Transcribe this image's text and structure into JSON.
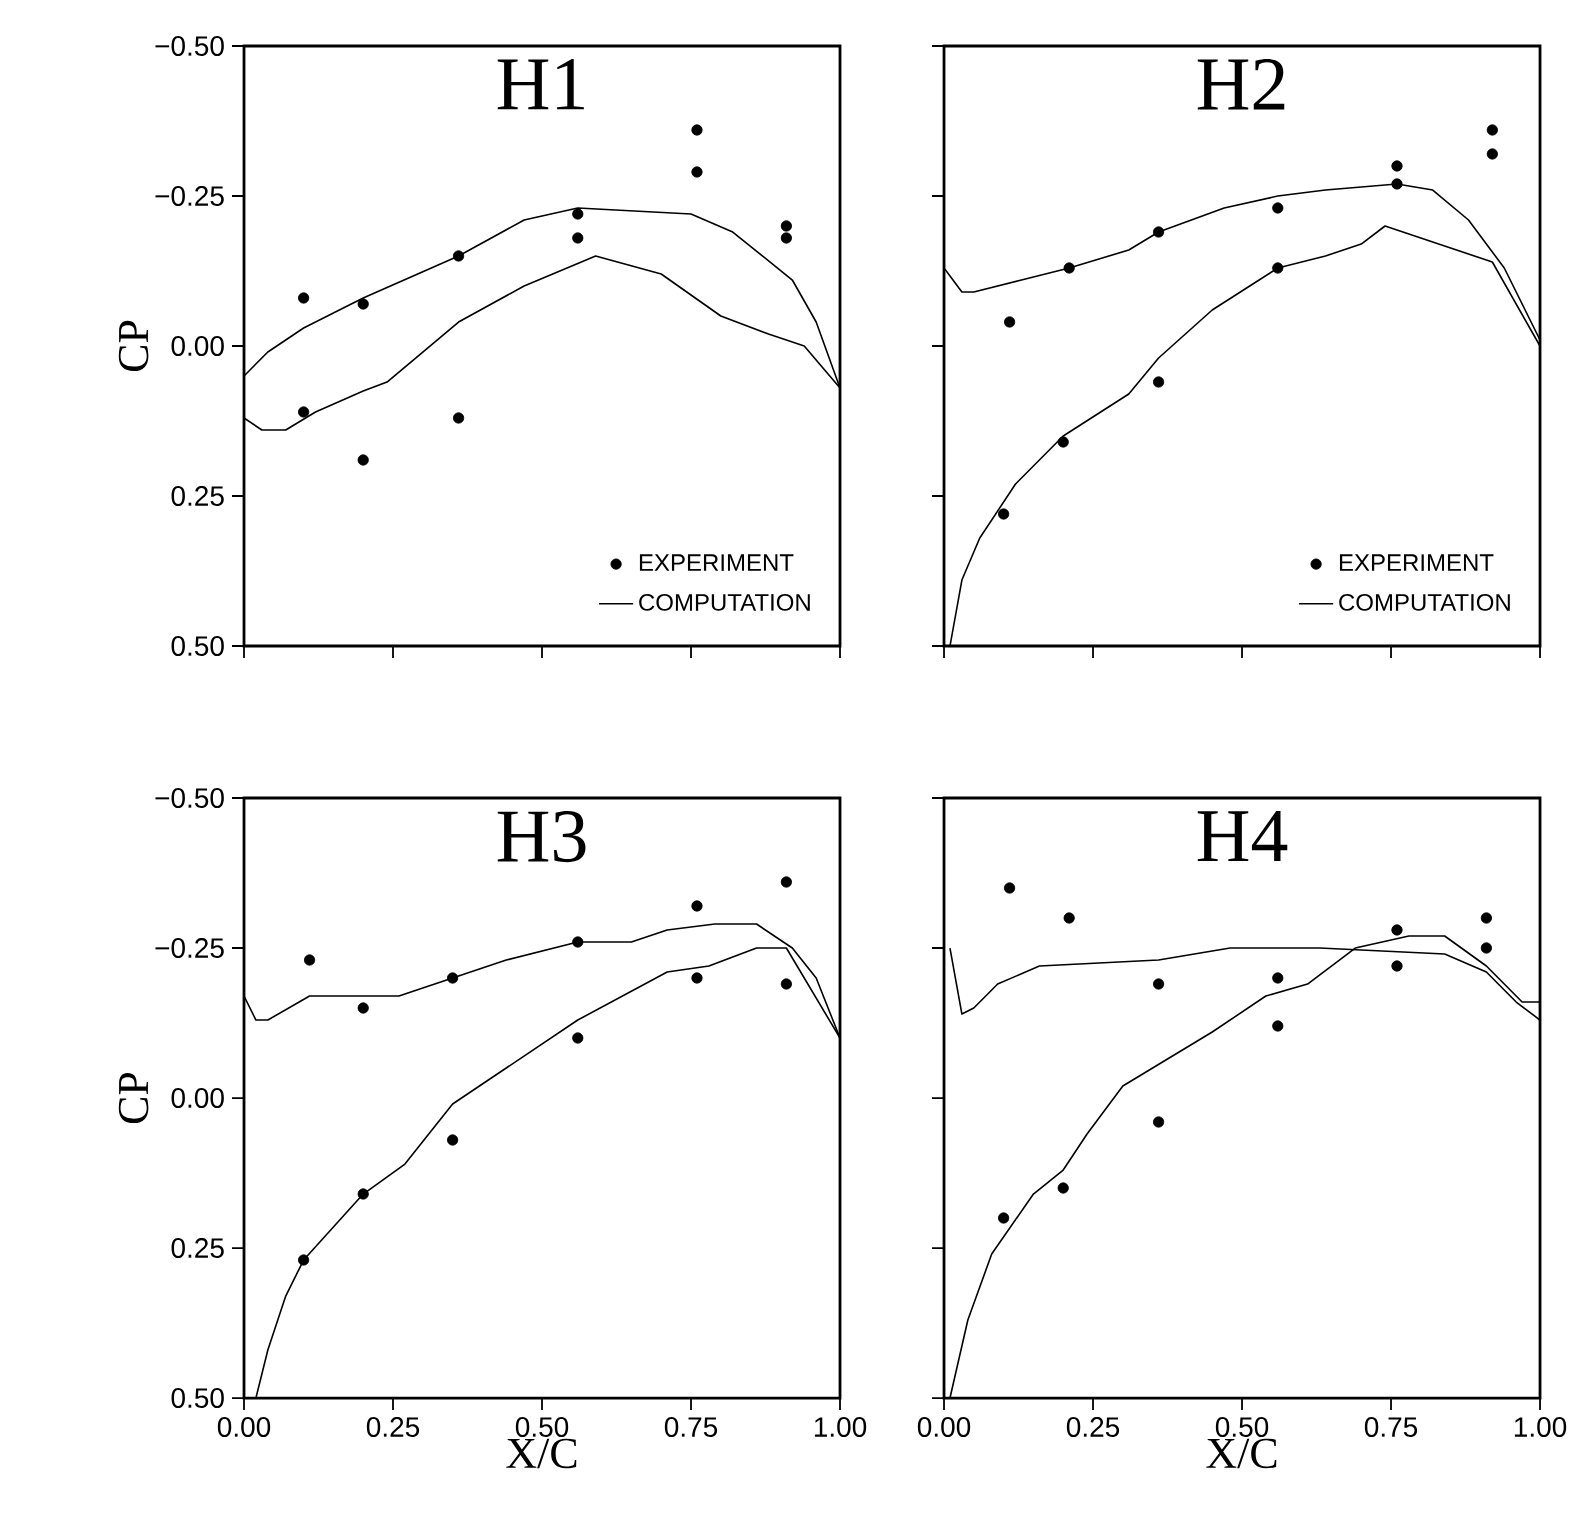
{
  "chart_data": [
    {
      "type": "line",
      "title": "H1",
      "ylabel": "CP",
      "xlim": [
        0,
        1
      ],
      "ylim": [
        0.5,
        -0.5
      ],
      "tick_labels": "y",
      "legend": "bottom right",
      "xticks": [
        {
          "value": 0,
          "label": null
        },
        {
          "value": 0.25,
          "label": null
        },
        {
          "value": 0.5,
          "label": null
        },
        {
          "value": 0.75,
          "label": null
        },
        {
          "value": 1,
          "label": null
        }
      ],
      "yticks": [
        {
          "value": -0.5,
          "label": "−0.50"
        },
        {
          "value": -0.25,
          "label": "−0.25"
        },
        {
          "value": 0,
          "label": "0.00"
        },
        {
          "value": 0.25,
          "label": "0.25"
        },
        {
          "value": 0.5,
          "label": "0.50"
        }
      ],
      "series": [
        {
          "name": "EXPERIMENT",
          "type": "scatter",
          "marker": "circle",
          "color": "#000000",
          "x": [
            0.1,
            0.1,
            0.2,
            0.2,
            0.36,
            0.36,
            0.56,
            0.56,
            0.76,
            0.76,
            0.91,
            0.91
          ],
          "values": [
            -0.08,
            0.11,
            -0.07,
            0.19,
            -0.15,
            0.12,
            -0.22,
            -0.18,
            -0.36,
            -0.29,
            -0.2,
            -0.18
          ]
        },
        {
          "name": "COMPUTATION",
          "color": "#000000",
          "x": [
            0,
            0.04,
            0.1,
            0.2,
            0.36,
            0.47,
            0.56,
            0.75,
            0.82,
            0.92,
            0.96,
            1.0
          ],
          "values": [
            0.05,
            0.01,
            -0.03,
            -0.08,
            -0.15,
            -0.21,
            -0.23,
            -0.22,
            -0.19,
            -0.11,
            -0.04,
            0.07
          ]
        },
        {
          "color": "#000000",
          "x": [
            0,
            0.03,
            0.07,
            0.12,
            0.2,
            0.24,
            0.36,
            0.47,
            0.59,
            0.7,
            0.8,
            0.88,
            0.94,
            1.0
          ],
          "values": [
            0.12,
            0.14,
            0.14,
            0.11,
            0.075,
            0.06,
            -0.04,
            -0.1,
            -0.15,
            -0.12,
            -0.05,
            -0.02,
            0.0,
            0.07
          ]
        }
      ]
    },
    {
      "type": "line",
      "title": "H2",
      "xlim": [
        0,
        1
      ],
      "ylim": [
        0.5,
        -0.5
      ],
      "tick_labels": false,
      "legend": "bottom right",
      "xticks": [
        {
          "value": 0,
          "label": null
        },
        {
          "value": 0.25,
          "label": null
        },
        {
          "value": 0.5,
          "label": null
        },
        {
          "value": 0.75,
          "label": null
        },
        {
          "value": 1,
          "label": null
        }
      ],
      "yticks": [
        {
          "value": -0.5,
          "label": null
        },
        {
          "value": -0.25,
          "label": null
        },
        {
          "value": 0,
          "label": null
        },
        {
          "value": 0.25,
          "label": null
        },
        {
          "value": 0.5,
          "label": null
        }
      ],
      "series": [
        {
          "name": "EXPERIMENT",
          "type": "scatter",
          "marker": "circle",
          "color": "#000000",
          "x": [
            0.11,
            0.1,
            0.21,
            0.2,
            0.36,
            0.36,
            0.56,
            0.56,
            0.76,
            0.76,
            0.92,
            0.92
          ],
          "values": [
            -0.04,
            0.28,
            -0.13,
            0.16,
            -0.19,
            0.06,
            -0.23,
            -0.13,
            -0.3,
            -0.27,
            -0.36,
            -0.32
          ]
        },
        {
          "name": "COMPUTATION",
          "color": "#000000",
          "x": [
            0,
            0.03,
            0.05,
            0.13,
            0.21,
            0.31,
            0.36,
            0.47,
            0.56,
            0.64,
            0.76,
            0.82,
            0.88,
            0.94,
            1.0
          ],
          "values": [
            -0.13,
            -0.09,
            -0.09,
            -0.11,
            -0.13,
            -0.16,
            -0.19,
            -0.23,
            -0.25,
            -0.26,
            -0.27,
            -0.26,
            -0.21,
            -0.13,
            -0.01
          ]
        },
        {
          "color": "#000000",
          "x": [
            0.01,
            0.03,
            0.06,
            0.12,
            0.2,
            0.31,
            0.36,
            0.45,
            0.56,
            0.64,
            0.7,
            0.74,
            0.92,
            1.0
          ],
          "values": [
            0.5,
            0.39,
            0.32,
            0.23,
            0.15,
            0.08,
            0.02,
            -0.06,
            -0.13,
            -0.15,
            -0.17,
            -0.2,
            -0.14,
            0.0
          ]
        }
      ]
    },
    {
      "type": "line",
      "title": "H3",
      "xlabel": "X/C",
      "ylabel": "CP",
      "xlim": [
        0,
        1
      ],
      "ylim": [
        0.5,
        -0.5
      ],
      "xticks": [
        {
          "value": 0,
          "label": "0.00"
        },
        {
          "value": 0.25,
          "label": "0.25"
        },
        {
          "value": 0.5,
          "label": "0.50"
        },
        {
          "value": 0.75,
          "label": "0.75"
        },
        {
          "value": 1,
          "label": "1.00"
        }
      ],
      "yticks": [
        {
          "value": -0.5,
          "label": "−0.50"
        },
        {
          "value": -0.25,
          "label": "−0.25"
        },
        {
          "value": 0,
          "label": "0.00"
        },
        {
          "value": 0.25,
          "label": "0.25"
        },
        {
          "value": 0.5,
          "label": "0.50"
        }
      ],
      "series": [
        {
          "type": "scatter",
          "marker": "circle",
          "color": "#000000",
          "x": [
            0.11,
            0.1,
            0.2,
            0.2,
            0.35,
            0.35,
            0.56,
            0.56,
            0.76,
            0.76,
            0.91,
            0.91
          ],
          "values": [
            -0.23,
            0.27,
            -0.15,
            0.16,
            -0.2,
            0.07,
            -0.26,
            -0.1,
            -0.32,
            -0.2,
            -0.36,
            -0.19
          ]
        },
        {
          "color": "#000000",
          "x": [
            0,
            0.02,
            0.04,
            0.11,
            0.26,
            0.35,
            0.44,
            0.56,
            0.65,
            0.71,
            0.79,
            0.86,
            0.92,
            0.96,
            1.0
          ],
          "values": [
            -0.17,
            -0.13,
            -0.13,
            -0.17,
            -0.17,
            -0.2,
            -0.23,
            -0.26,
            -0.26,
            -0.28,
            -0.29,
            -0.29,
            -0.25,
            -0.2,
            -0.1
          ]
        },
        {
          "color": "#000000",
          "x": [
            0.02,
            0.04,
            0.07,
            0.1,
            0.2,
            0.27,
            0.35,
            0.44,
            0.56,
            0.71,
            0.78,
            0.86,
            0.91,
            1.0
          ],
          "values": [
            0.5,
            0.42,
            0.33,
            0.27,
            0.16,
            0.11,
            0.01,
            -0.05,
            -0.13,
            -0.21,
            -0.22,
            -0.25,
            -0.25,
            -0.1
          ]
        }
      ]
    },
    {
      "type": "line",
      "title": "H4",
      "xlabel": "X/C",
      "xlim": [
        0,
        1
      ],
      "ylim": [
        0.5,
        -0.5
      ],
      "tick_labels": "x",
      "xticks": [
        {
          "value": 0,
          "label": "0.00"
        },
        {
          "value": 0.25,
          "label": "0.25"
        },
        {
          "value": 0.5,
          "label": "0.50"
        },
        {
          "value": 0.75,
          "label": "0.75"
        },
        {
          "value": 1,
          "label": "1.00"
        }
      ],
      "yticks": [
        {
          "value": -0.5,
          "label": null
        },
        {
          "value": -0.25,
          "label": null
        },
        {
          "value": 0,
          "label": null
        },
        {
          "value": 0.25,
          "label": null
        },
        {
          "value": 0.5,
          "label": null
        }
      ],
      "series": [
        {
          "type": "scatter",
          "marker": "circle",
          "color": "#000000",
          "x": [
            0.11,
            0.1,
            0.21,
            0.2,
            0.36,
            0.36,
            0.56,
            0.56,
            0.76,
            0.76,
            0.91,
            0.91
          ],
          "values": [
            -0.35,
            0.2,
            -0.3,
            0.15,
            -0.19,
            0.04,
            -0.2,
            -0.12,
            -0.28,
            -0.22,
            -0.3,
            -0.25
          ]
        },
        {
          "color": "#000000",
          "x": [
            0.01,
            0.03,
            0.05,
            0.09,
            0.16,
            0.36,
            0.48,
            0.63,
            0.84,
            0.91,
            0.96,
            1.0
          ],
          "values": [
            -0.25,
            -0.14,
            -0.15,
            -0.19,
            -0.22,
            -0.23,
            -0.25,
            -0.25,
            -0.24,
            -0.21,
            -0.16,
            -0.13
          ]
        },
        {
          "color": "#000000",
          "x": [
            0.01,
            0.04,
            0.08,
            0.15,
            0.2,
            0.24,
            0.3,
            0.45,
            0.54,
            0.61,
            0.69,
            0.78,
            0.84,
            0.91,
            0.97,
            1.0
          ],
          "values": [
            0.5,
            0.37,
            0.26,
            0.16,
            0.12,
            0.06,
            -0.02,
            -0.11,
            -0.17,
            -0.19,
            -0.25,
            -0.27,
            -0.27,
            -0.22,
            -0.16,
            -0.16
          ]
        }
      ]
    }
  ]
}
